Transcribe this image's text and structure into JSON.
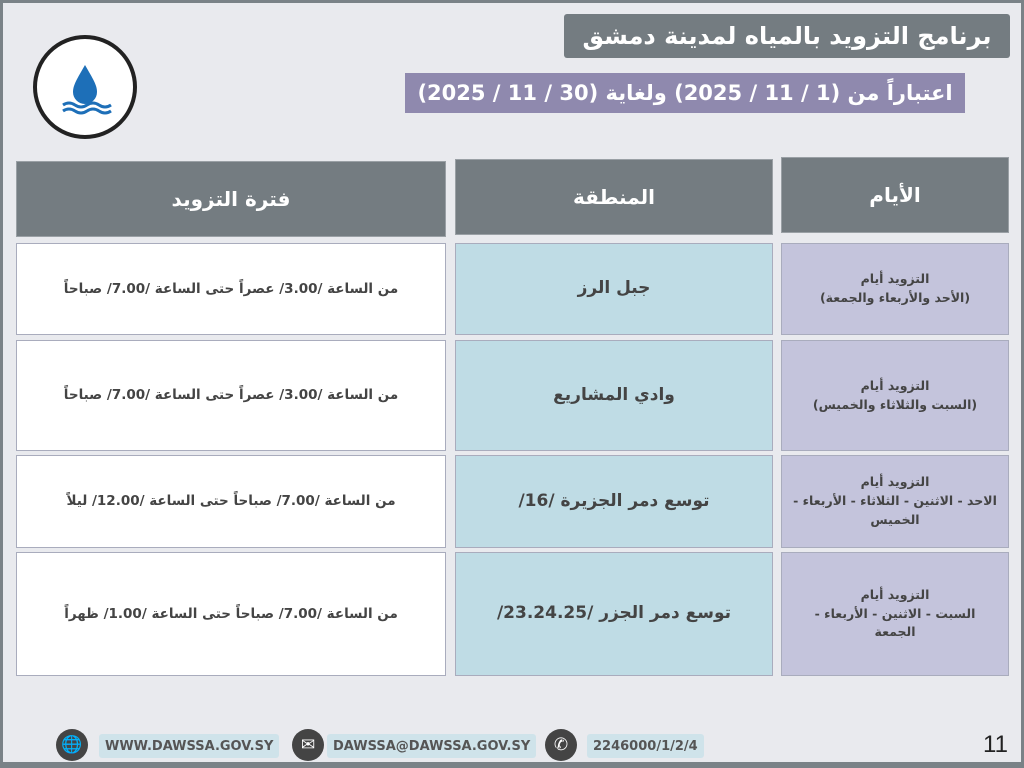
{
  "title": "برنامج التزويد بالمياه لمدينة دمشق",
  "subtitle": "اعتباراً من (1 / 11 / 2025) ولغاية (30 / 11 / 2025)",
  "headers": {
    "days": "الأيام",
    "region": "المنطقة",
    "period": "فترة التزويد"
  },
  "rows": [
    {
      "days": "التزويد أيام\n(الأحد والأربعاء والجمعة)",
      "region": "جبل الرز",
      "period": "من الساعة /3.00/ عصراً حتى الساعة /7.00/ صباحاً"
    },
    {
      "days": "التزويد أيام\n(السبت والثلاثاء والخميس)",
      "region": "وادي المشاريع",
      "period": "من الساعة /3.00/ عصراً حتى الساعة /7.00/ صباحاً"
    },
    {
      "days": "التزويد  أيام\nالاحد - الاثنين - الثلاثاء - الأربعاء - الخميس",
      "region": "توسع دمر الجزيرة /16/",
      "period": "من الساعة /7.00/ صباحاً حتى الساعة /12.00/ ليلاً"
    },
    {
      "days": "التزويد  أيام\nالسبت - الاثنين - الأربعاء - الجمعة",
      "region": "توسع دمر الجزر /23.24.25/",
      "period": "من الساعة /7.00/ صباحاً حتى الساعة /1.00/ ظهراً"
    }
  ],
  "footer": {
    "website": "WWW.DAWSSA.GOV.SY",
    "email": "DAWSSA@DAWSSA.GOV.SY",
    "phone": "2246000/1/2/4",
    "page_number": "11"
  },
  "icons": {
    "website": "globe-icon",
    "email": "envelope-icon",
    "phone": "phone-icon",
    "logo": "water-drop-logo"
  },
  "colors": {
    "header": "#747c81",
    "subtitle": "#8f89ae",
    "region_cell": "#bfdce5",
    "days_cell": "#c4c4dc"
  }
}
